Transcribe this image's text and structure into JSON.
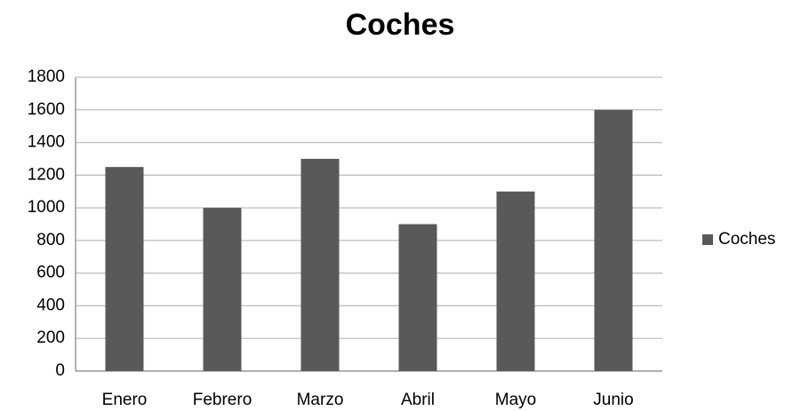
{
  "chart_data": {
    "type": "bar",
    "title": "Coches",
    "categories": [
      "Enero",
      "Febrero",
      "Marzo",
      "Abril",
      "Mayo",
      "Junio"
    ],
    "series": [
      {
        "name": "Coches",
        "color": "#595959",
        "values": [
          1250,
          1000,
          1300,
          900,
          1100,
          1600
        ]
      }
    ],
    "ylim": [
      0,
      1800
    ],
    "yticks": [
      0,
      200,
      400,
      600,
      800,
      1000,
      1200,
      1400,
      1600,
      1800
    ],
    "grid": true,
    "legend": "right"
  }
}
